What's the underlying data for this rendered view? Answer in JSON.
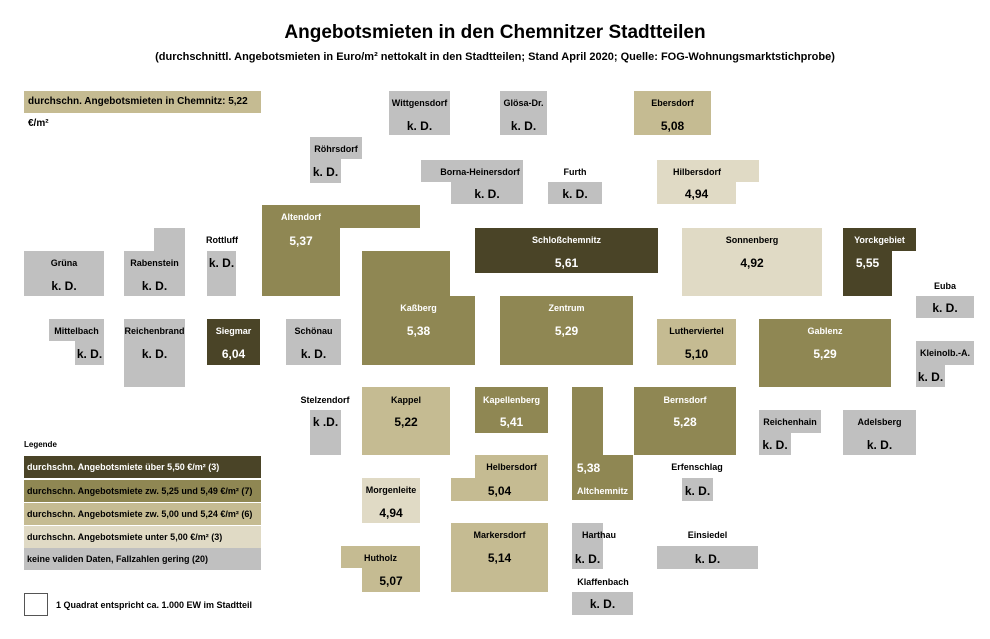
{
  "title": "Angebotsmieten in den Chemnitzer Stadtteilen",
  "subtitle": "(durchschnittl. Angebotsmieten in Euro/m² nettokalt in den Stadtteilen; Stand April 2020; Quelle: FOG-Wohnungsmarktstichprobe)",
  "average_label": "durchschn. Angebotsmieten in Chemnitz: 5,22 €/m²",
  "colors": {
    "c1": "#4a4427",
    "c2": "#8f8753",
    "c3": "#c5bb92",
    "c4": "#e0dac5",
    "c5": "#c0c0c0"
  },
  "districts": {
    "wittgensdorf": {
      "name": "Wittgensdorf",
      "value": "k. D."
    },
    "gloesa": {
      "name": "Glösa-Dr.",
      "value": "k. D."
    },
    "ebersdorf": {
      "name": "Ebersdorf",
      "value": "5,08"
    },
    "roehrsdorf": {
      "name": "Röhrsdorf",
      "value": "k. D."
    },
    "borna": {
      "name": "Borna-Heinersdorf",
      "value": "k. D."
    },
    "furth": {
      "name": "Furth",
      "value": "k. D."
    },
    "hilbersdorf": {
      "name": "Hilbersdorf",
      "value": "4,94"
    },
    "altendorf": {
      "name": "Altendorf",
      "value": "5,37"
    },
    "rottluff": {
      "name": "Rottluff",
      "value": "k. D."
    },
    "schlosschemnitz": {
      "name": "Schloßchemnitz",
      "value": "5,61"
    },
    "sonnenberg": {
      "name": "Sonnenberg",
      "value": "4,92"
    },
    "yorckgebiet": {
      "name": "Yorckgebiet",
      "value": "5,55"
    },
    "gruena": {
      "name": "Grüna",
      "value": "k. D."
    },
    "rabenstein": {
      "name": "Rabenstein",
      "value": "k. D."
    },
    "euba": {
      "name": "Euba",
      "value": "k. D."
    },
    "kassberg": {
      "name": "Kaßberg",
      "value": "5,38"
    },
    "zentrum": {
      "name": "Zentrum",
      "value": "5,29"
    },
    "mittelbach": {
      "name": "Mittelbach",
      "value": "k. D."
    },
    "reichenbrand": {
      "name": "Reichenbrand",
      "value": "k. D."
    },
    "siegmar": {
      "name": "Siegmar",
      "value": "6,04"
    },
    "schoenau": {
      "name": "Schönau",
      "value": "k. D."
    },
    "lutherviertel": {
      "name": "Lutherviertel",
      "value": "5,10"
    },
    "gablenz": {
      "name": "Gablenz",
      "value": "5,29"
    },
    "kleinolbersdorf": {
      "name": "Kleinolb.-A.",
      "value": "k. D."
    },
    "stelzendorf": {
      "name": "Stelzendorf",
      "value": "k .D."
    },
    "kappel": {
      "name": "Kappel",
      "value": "5,22"
    },
    "kapellenberg": {
      "name": "Kapellenberg",
      "value": "5,41"
    },
    "altchemnitz": {
      "name": "Altchemnitz",
      "value": "5,38"
    },
    "bernsdorf": {
      "name": "Bernsdorf",
      "value": "5,28"
    },
    "reichenhain": {
      "name": "Reichenhain",
      "value": "k. D."
    },
    "adelsberg": {
      "name": "Adelsberg",
      "value": "k. D."
    },
    "helbersdorf": {
      "name": "Helbersdorf",
      "value": "5,04"
    },
    "erfenschlag": {
      "name": "Erfenschlag",
      "value": "k. D."
    },
    "morgenleite": {
      "name": "Morgenleite",
      "value": "4,94"
    },
    "markersdorf": {
      "name": "Markersdorf",
      "value": "5,14"
    },
    "harthau": {
      "name": "Harthau",
      "value": "k. D."
    },
    "einsiedel": {
      "name": "Einsiedel",
      "value": "k. D."
    },
    "hutholz": {
      "name": "Hutholz",
      "value": "5,07"
    },
    "klaffenbach": {
      "name": "Klaffenbach",
      "value": "k. D."
    }
  },
  "legend": {
    "title": "Legende",
    "items": [
      {
        "label": "durchschn. Angebotsmiete über 5,50 €/m² (3)",
        "color": "#4a4427"
      },
      {
        "label": "durchschn. Angebotsmiete zw. 5,25 und 5,49 €/m² (7)",
        "color": "#8f8753"
      },
      {
        "label": "durchschn. Angebotsmiete zw. 5,00 und 5,24 €/m² (6)",
        "color": "#c5bb92"
      },
      {
        "label": "durchschn. Angebotsmiete unter 5,00 €/m² (3)",
        "color": "#e0dac5"
      },
      {
        "label": "keine validen Daten, Fallzahlen gering (20)",
        "color": "#c0c0c0"
      }
    ],
    "scale_note": "1 Quadrat entspricht ca. 1.000 EW im Stadtteil"
  }
}
